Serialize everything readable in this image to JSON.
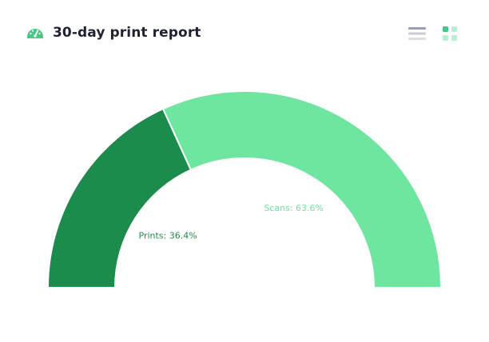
{
  "header": {
    "title": "30-day print report",
    "icon": "speedometer-icon"
  },
  "view_toggle": {
    "list_icon": "list-view-icon",
    "grid_icon": "grid-view-icon",
    "active": "grid"
  },
  "colors": {
    "prints": "#1c8c4c",
    "scans": "#6ee6a0",
    "title": "#1f2233",
    "icon_green": "#48c884"
  },
  "chart_data": {
    "type": "pie",
    "variant": "semi-donut",
    "title": "",
    "series": [
      {
        "name": "Prints",
        "value": 36.4,
        "label": "Prints: 36.4%",
        "color": "#1c8c4c"
      },
      {
        "name": "Scans",
        "value": 63.6,
        "label": "Scans: 63.6%",
        "color": "#6ee6a0"
      }
    ],
    "legend": "none"
  }
}
